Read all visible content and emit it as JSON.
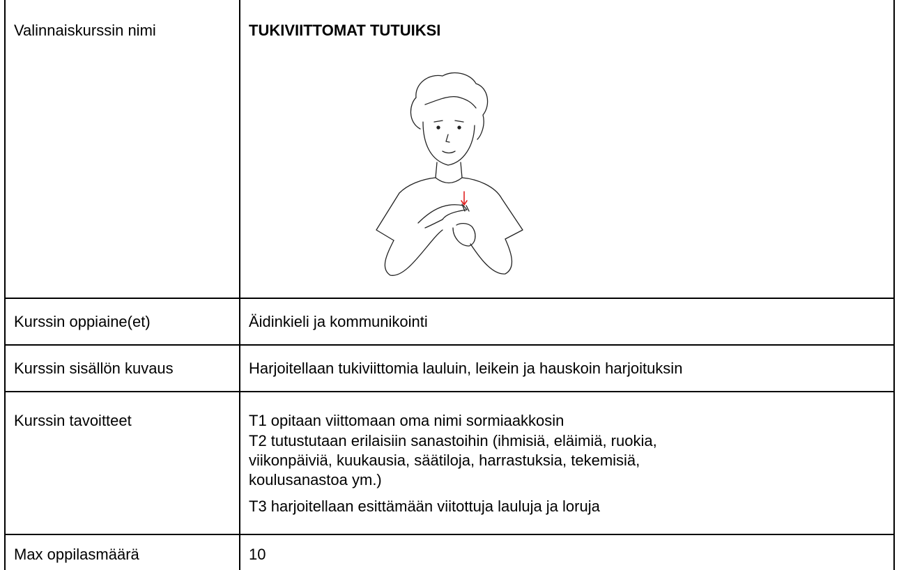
{
  "table": {
    "rows": [
      {
        "label": "Valinnaiskurssin nimi",
        "value": "TUKIVIITTOMAT TUTUIKSI"
      },
      {
        "label": "Kurssin oppiaine(et)",
        "value": "Äidinkieli ja kommunikointi"
      },
      {
        "label": "Kurssin sisällön kuvaus",
        "value": "Harjoitellaan tukiviittomia lauluin, leikein ja hauskoin harjoituksin"
      },
      {
        "label": "Kurssin tavoitteet",
        "lines": [
          "T1 opitaan viittomaan oma nimi sormiaakkosin",
          "T2 tutustutaan erilaisiin sanastoihin (ihmisiä, eläimiä, ruokia,",
          "viikonpäiviä, kuukausia, säätiloja, harrastuksia, tekemisiä,",
          "koulusanastoa ym.)",
          "T3 harjoitellaan esittämään viitottuja lauluja ja loruja"
        ]
      },
      {
        "label": "Max oppilasmäärä",
        "value": 10
      }
    ]
  }
}
